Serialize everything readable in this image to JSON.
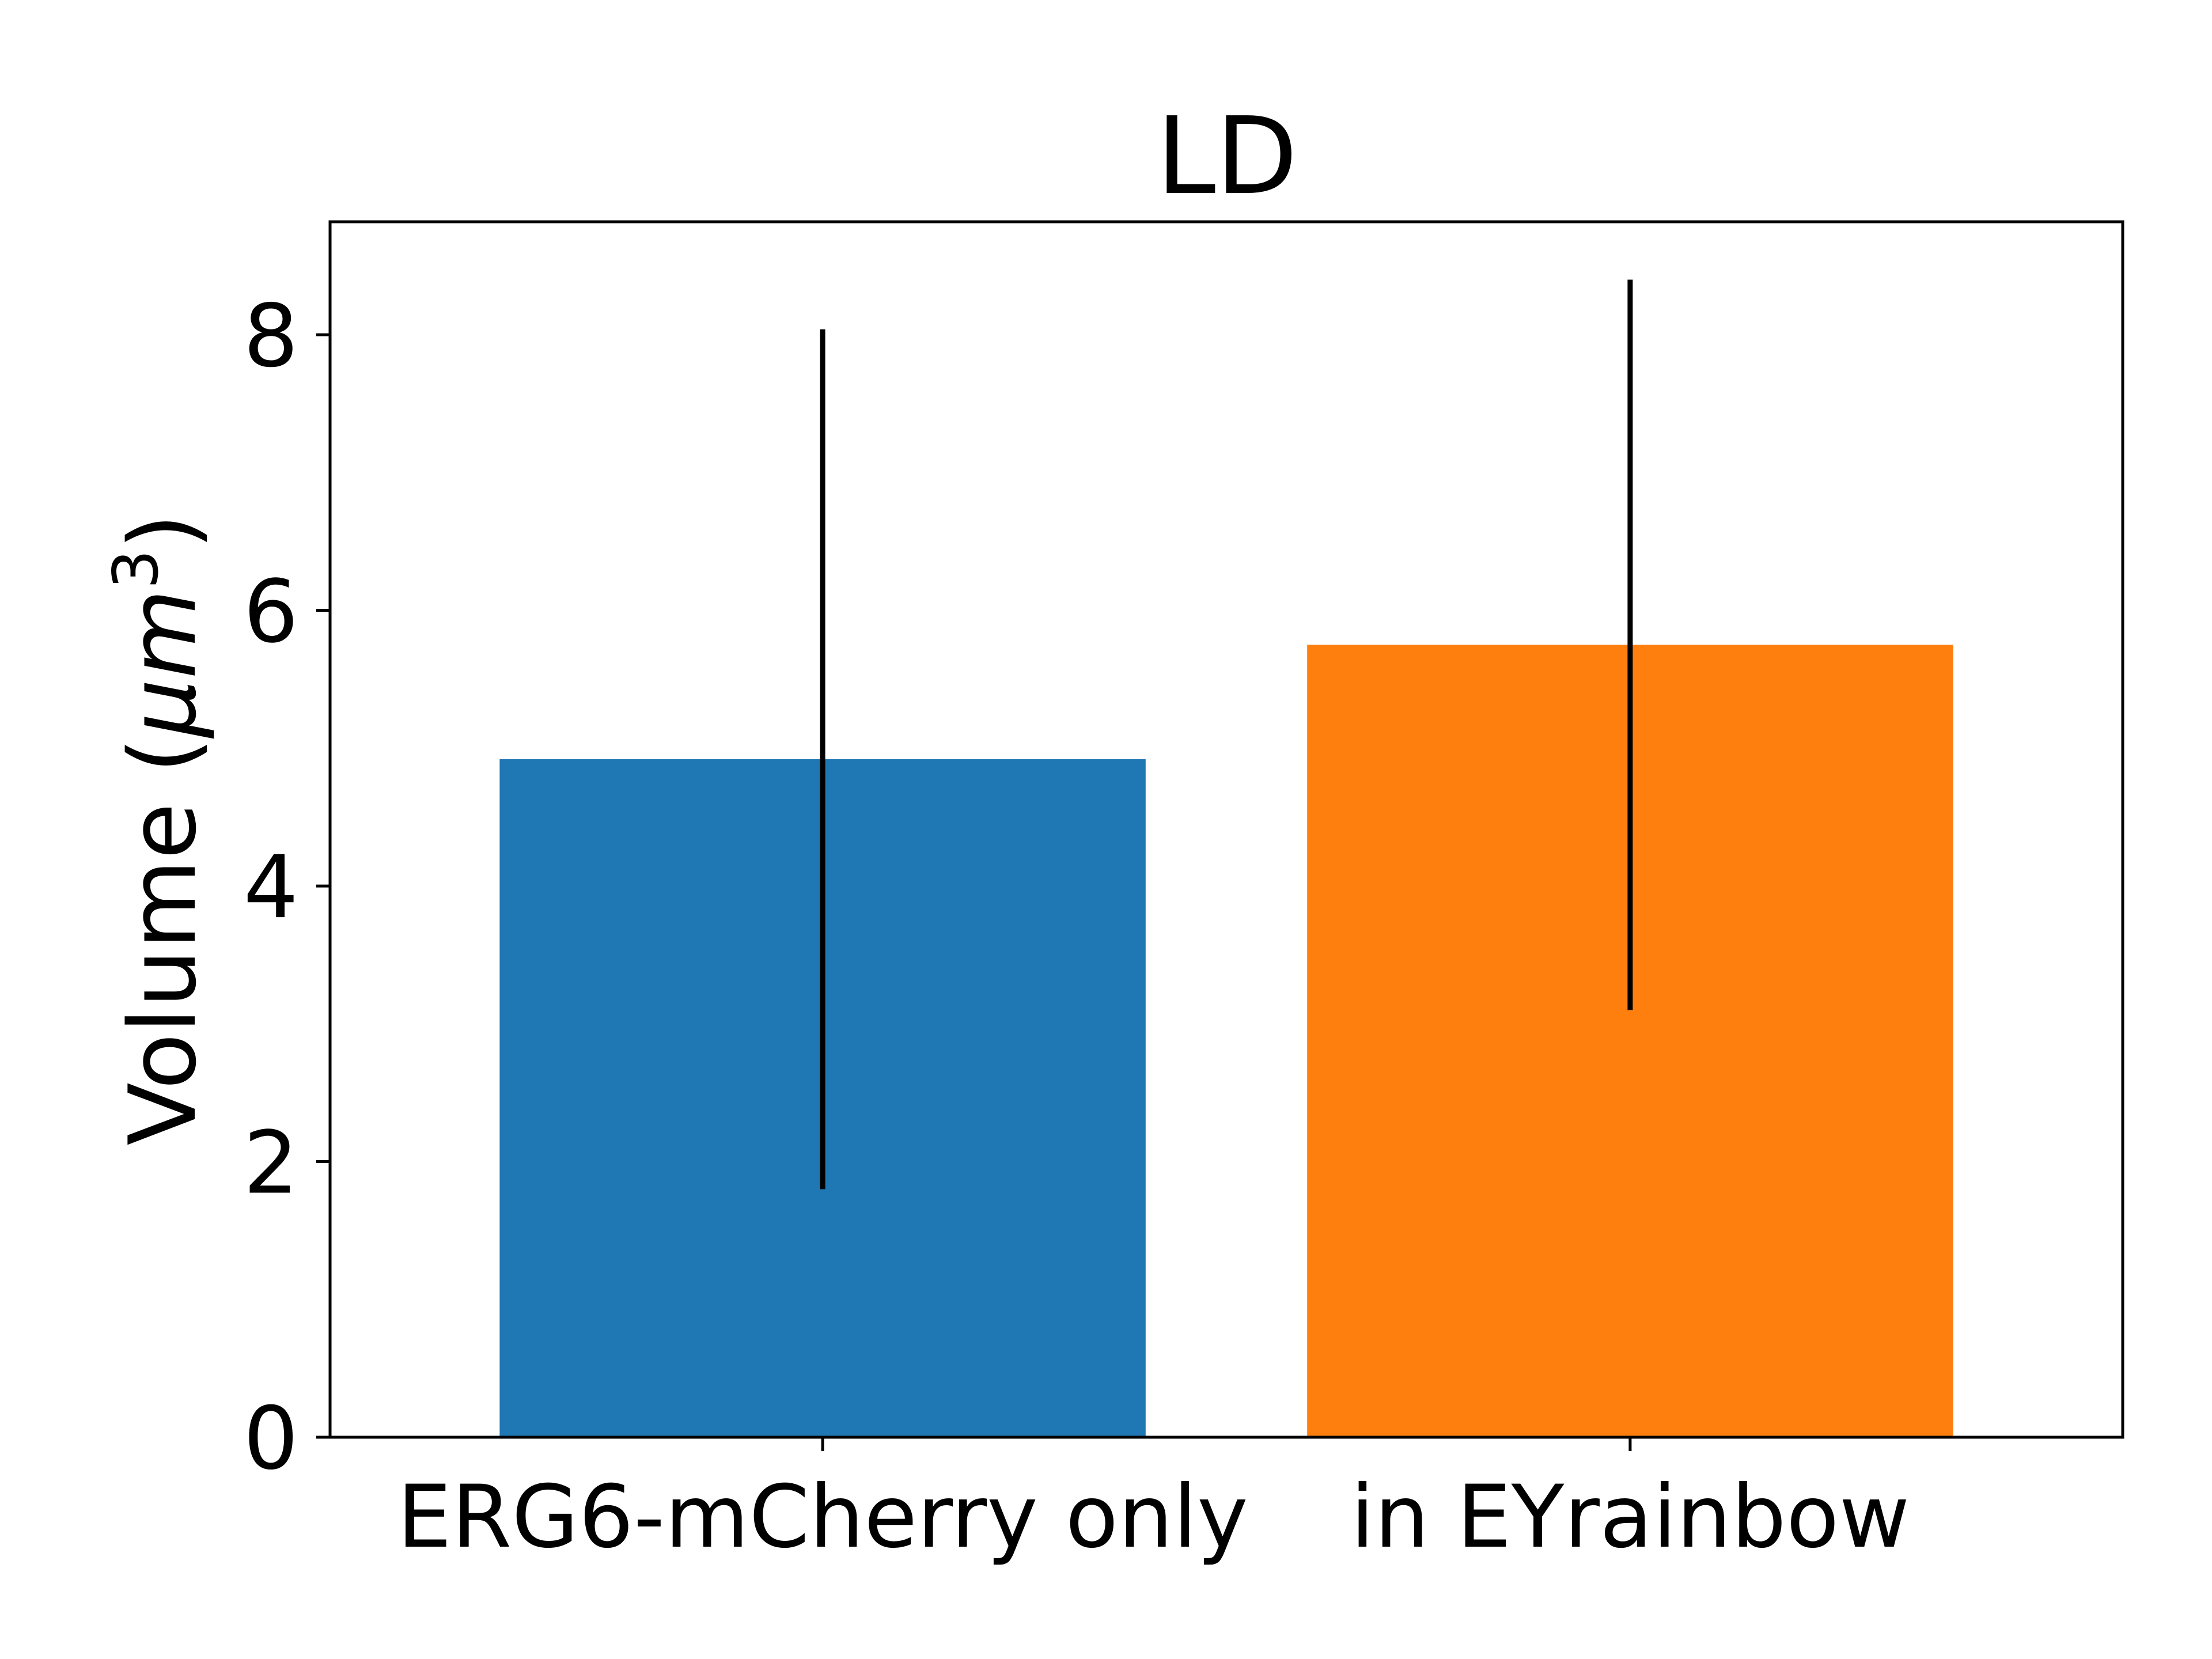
{
  "chart_data": {
    "type": "bar",
    "title": "LD",
    "xlabel": "",
    "ylabel": {
      "text": "Volume (",
      "unit_greek": "μ",
      "unit_rest": "m",
      "unit_sup": "3",
      "close": ")"
    },
    "categories": [
      "ERG6-mCherry only",
      "in EYrainbow"
    ],
    "values": [
      4.92,
      5.75
    ],
    "errors": [
      3.12,
      2.65
    ],
    "colors": [
      "#1f77b4",
      "#ff7f0e"
    ],
    "error_color": "#000000",
    "ylim": [
      0,
      8.82
    ],
    "yticks": [
      0,
      2,
      4,
      6,
      8
    ],
    "grid": false,
    "legend": "none"
  }
}
